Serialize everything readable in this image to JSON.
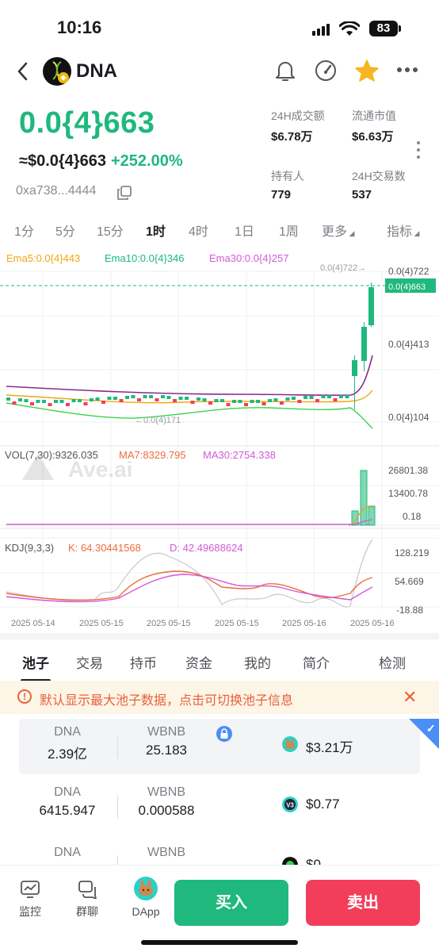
{
  "status": {
    "time": "10:16",
    "battery": "83"
  },
  "header": {
    "token_name": "DNA"
  },
  "price": {
    "main": "0.0{4}663",
    "usd": "≈$0.0{4}663",
    "change": "+252.00%",
    "address": "0xa738...4444"
  },
  "stats": [
    {
      "label": "24H成交额",
      "value": "$6.78万"
    },
    {
      "label": "流通市值",
      "value": "$6.63万"
    },
    {
      "label": "持有人",
      "value": "779"
    },
    {
      "label": "24H交易数",
      "value": "537"
    }
  ],
  "timeframes": [
    "1分",
    "5分",
    "15分",
    "1时",
    "4时",
    "1日",
    "1周",
    "更多",
    "指标"
  ],
  "active_timeframe": "1时",
  "ema": {
    "ema5": "Ema5:0.0{4}443",
    "ema10": "Ema10:0.0{4}346",
    "ema30": "Ema30:0.0{4}257",
    "colors": {
      "ema5": "#f0a60d",
      "ema10": "#19b784",
      "ema30": "#d25ad6"
    }
  },
  "price_axis": {
    "high_label": "0.0(4)722",
    "current_label": "0.0(4)663",
    "mid_label": "0.0{4}413",
    "low_label": "0.0{4}104",
    "max_marker": "0.0(4)722→",
    "min_marker": "←0.0(4)171"
  },
  "volume": {
    "label": "VOL(7,30):9326.035",
    "ma7": "MA7:8329.795",
    "ma30": "MA30:2754.338",
    "axis": [
      "26801.38",
      "13400.78",
      "0.18"
    ]
  },
  "kdj": {
    "label": "KDJ(9,3,3)",
    "k": "K: 64.30441568",
    "d": "D: 42.49688624",
    "axis": [
      "128.219",
      "54.669",
      "-18.88"
    ]
  },
  "x_axis": [
    "2025 05-14",
    "2025 05-15",
    "2025 05-15",
    "2025 05-15",
    "2025 05-16",
    "2025 05-16"
  ],
  "watermark": "Ave.ai",
  "chart_data": {
    "type": "candlestick",
    "x": [
      "2025 05-14",
      "2025 05-15",
      "2025 05-15",
      "2025 05-15",
      "2025 05-16",
      "2025 05-16"
    ],
    "price_ticks": [
      "0.0{4}104",
      "0.0{4}413",
      "0.0(4)722"
    ],
    "last_price": "0.0(4)663",
    "series": [
      {
        "name": "Ema5",
        "last": "0.0{4}443"
      },
      {
        "name": "Ema10",
        "last": "0.0{4}346"
      },
      {
        "name": "Ema30",
        "last": "0.0{4}257"
      }
    ]
  },
  "tabs": [
    "池子",
    "交易",
    "持币",
    "资金",
    "我的",
    "简介",
    "检测"
  ],
  "notice": "默认显示最大池子数据，点击可切换池子信息",
  "pools": [
    {
      "sym1": "DNA",
      "amt1": "2.39亿",
      "sym2": "WBNB",
      "amt2": "25.183",
      "liquidity": "$3.21万"
    },
    {
      "sym1": "DNA",
      "amt1": "6415.947",
      "sym2": "WBNB",
      "amt2": "0.000588",
      "liquidity": "$0.77"
    },
    {
      "sym1": "DNA",
      "amt1": "",
      "sym2": "WBNB",
      "amt2": "",
      "liquidity": "$0"
    }
  ],
  "bottom": {
    "monitor": "监控",
    "group": "群聊",
    "dapp": "DApp",
    "buy": "买入",
    "sell": "卖出"
  }
}
